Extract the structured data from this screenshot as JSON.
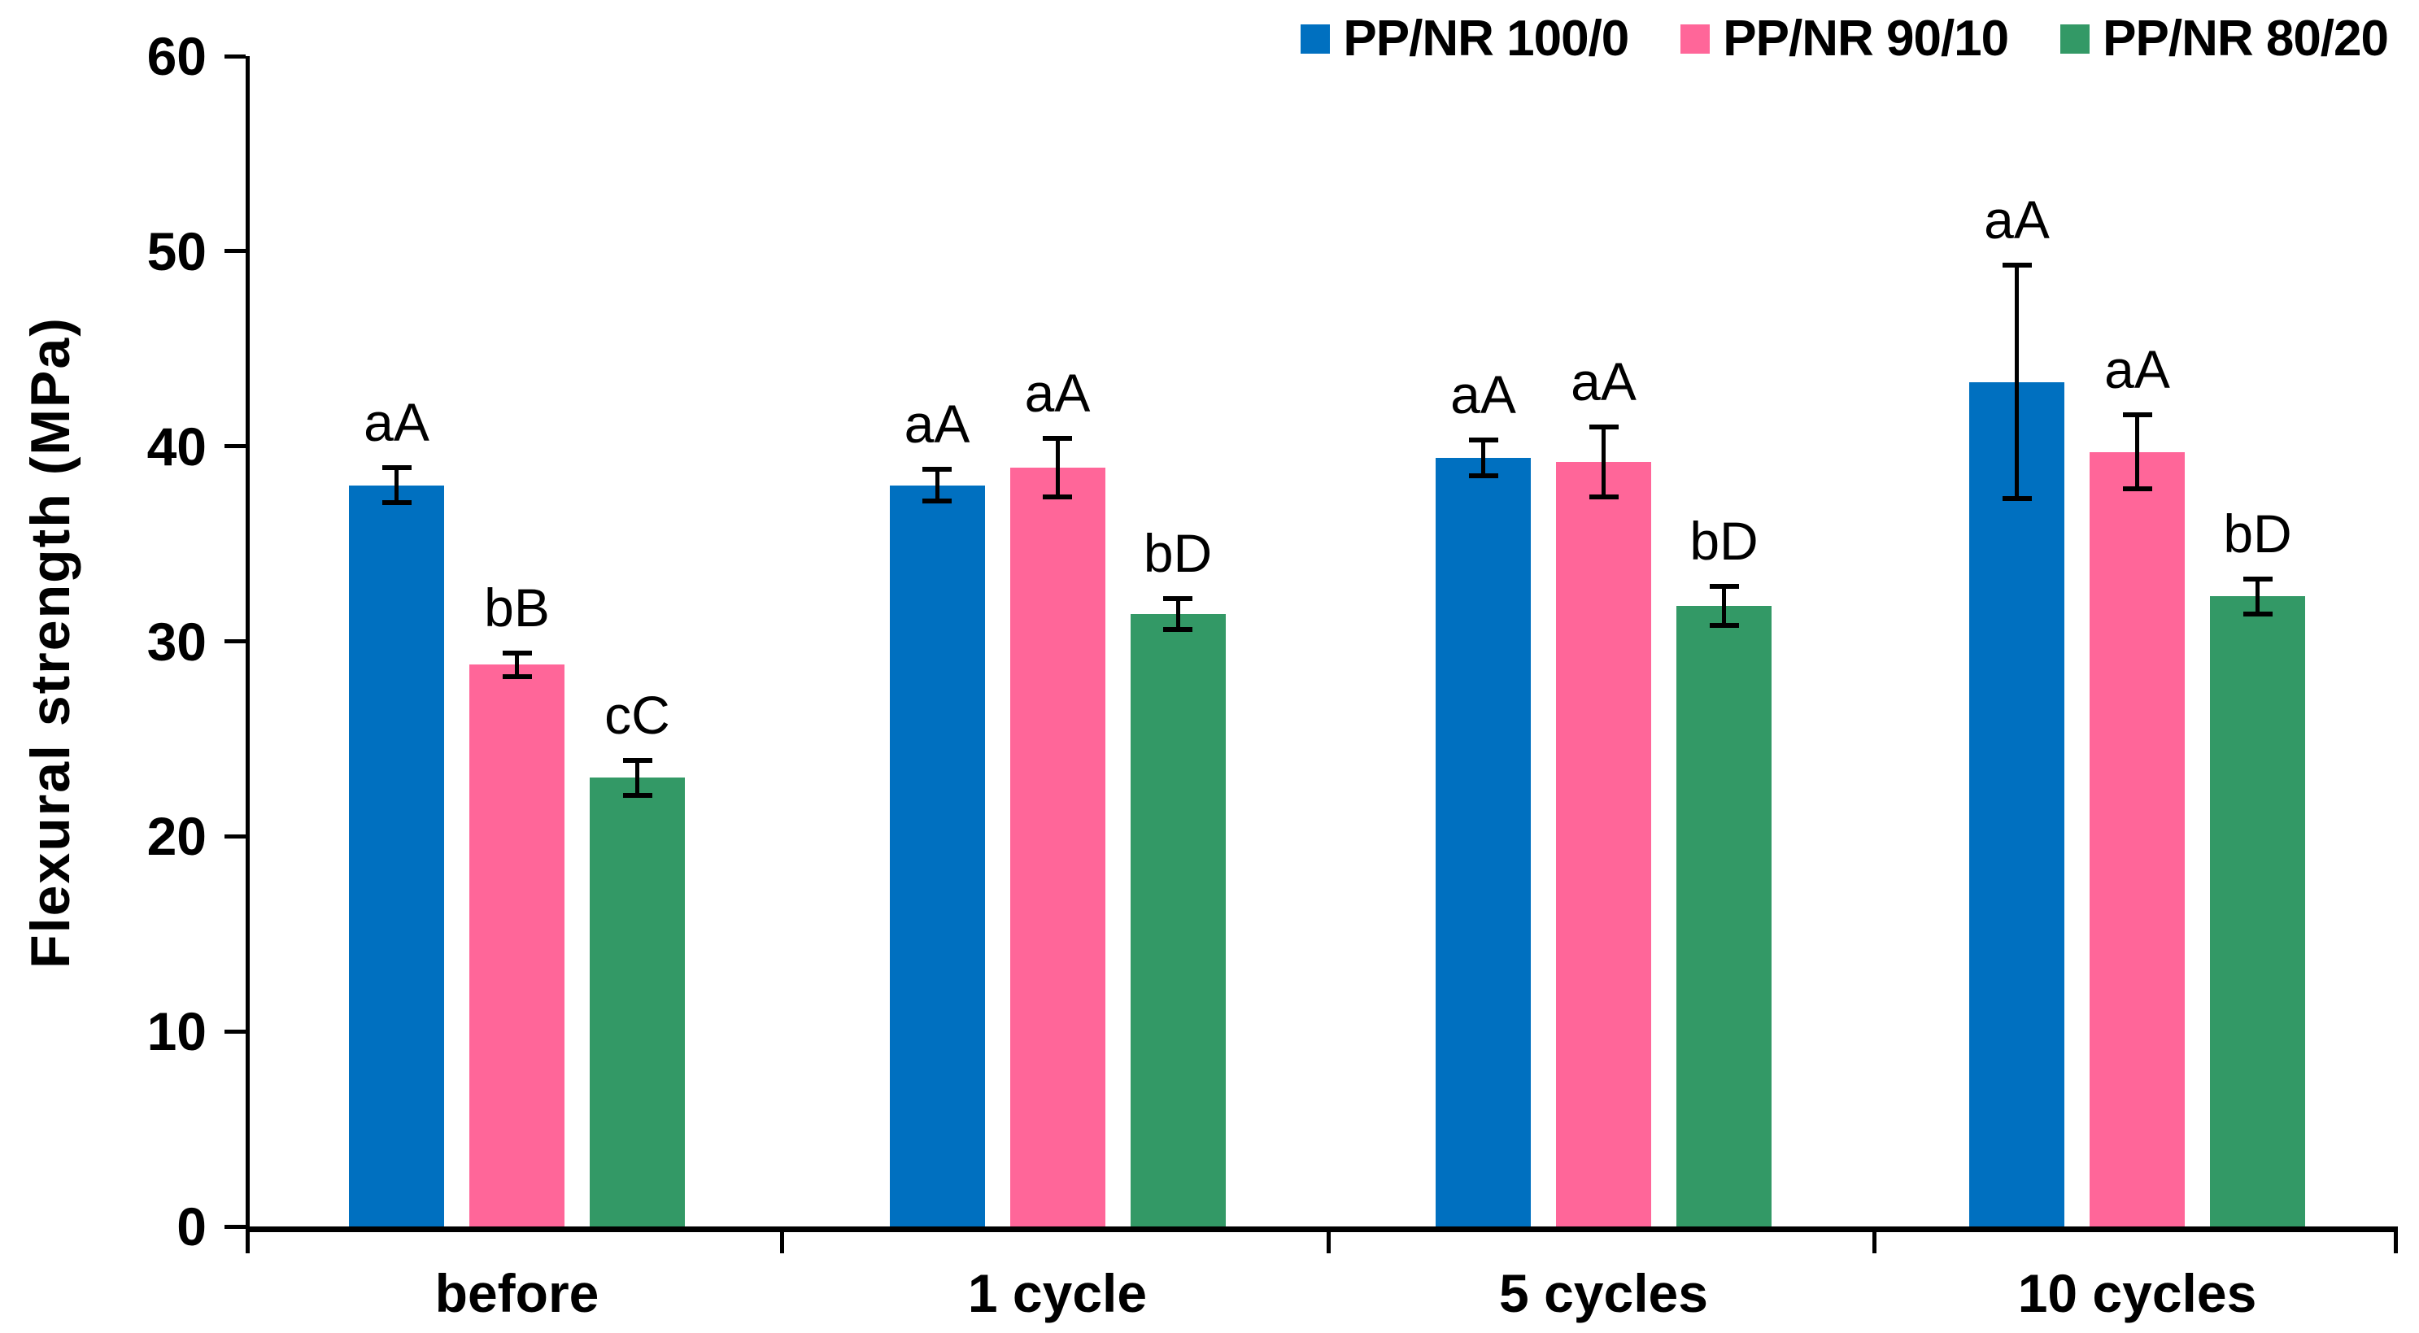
{
  "chart_data": {
    "type": "bar",
    "title": "",
    "ylabel": "Flexural strength (MPa)",
    "xlabel": "",
    "ylim": [
      0,
      60
    ],
    "yticks": [
      0,
      10,
      20,
      30,
      40,
      50,
      60
    ],
    "grid": false,
    "legend_position": "top-right",
    "axis_color": "#000000",
    "categories": [
      "before",
      "1 cycle",
      "5 cycles",
      "10 cycles"
    ],
    "series": [
      {
        "name": "PP/NR 100/0",
        "color": "#0070C0",
        "values": [
          38.0,
          38.0,
          39.4,
          43.3
        ],
        "errors": [
          0.9,
          0.8,
          0.9,
          6.0
        ],
        "sig_labels": [
          "aA",
          "aA",
          "aA",
          "aA"
        ]
      },
      {
        "name": "PP/NR 90/10",
        "color": "#FF6699",
        "values": [
          28.8,
          38.9,
          39.2,
          39.7
        ],
        "errors": [
          0.6,
          1.5,
          1.8,
          1.9
        ],
        "sig_labels": [
          "bB",
          "aA",
          "aA",
          "aA"
        ]
      },
      {
        "name": "PP/NR 80/20",
        "color": "#339966",
        "values": [
          23.0,
          31.4,
          31.8,
          32.3
        ],
        "errors": [
          0.9,
          0.8,
          1.0,
          0.9
        ],
        "sig_labels": [
          "cC",
          "bD",
          "bD",
          "bD"
        ]
      }
    ]
  }
}
